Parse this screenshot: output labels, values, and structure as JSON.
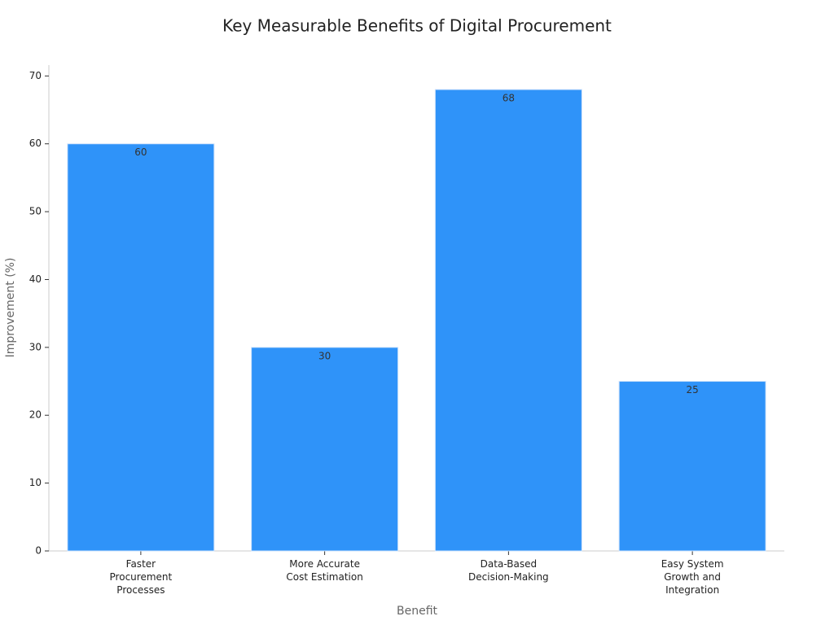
{
  "chart_data": {
    "type": "bar",
    "title": "Key Measurable Benefits of Digital Procurement",
    "xlabel": "Benefit",
    "ylabel": "Improvement (%)",
    "categories": [
      "Faster\nProcurement\nProcesses",
      "More Accurate\nCost Estimation",
      "Data-Based\nDecision-Making",
      "Easy System\nGrowth and\nIntegration"
    ],
    "values": [
      60,
      30,
      68,
      25
    ],
    "color": "#2f93f9",
    "ylim": [
      0,
      71.6
    ],
    "yticks": [
      0,
      10,
      20,
      30,
      40,
      50,
      60,
      70
    ],
    "grid": false
  }
}
